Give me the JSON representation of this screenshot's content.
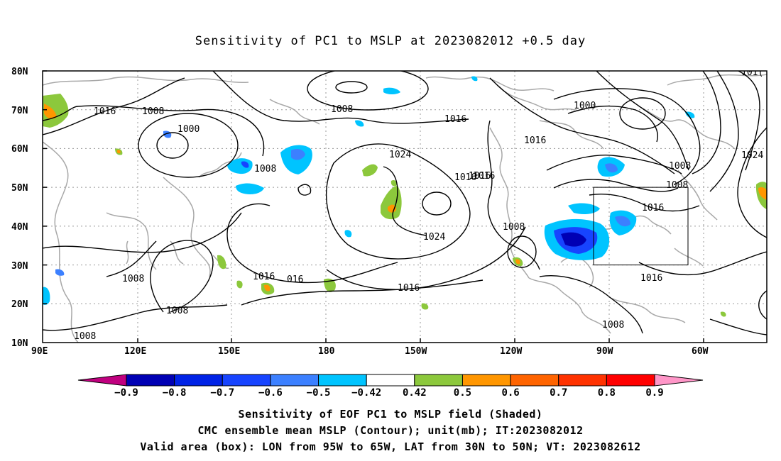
{
  "title": "Sensitivity of PC1 to MSLP at 2023082012 +0.5 day",
  "lat_labels": [
    "80N",
    "70N",
    "60N",
    "50N",
    "40N",
    "30N",
    "20N",
    "10N"
  ],
  "lon_labels": [
    "90E",
    "120E",
    "150E",
    "180",
    "150W",
    "120W",
    "90W",
    "60W"
  ],
  "contour_labels": [
    "1016",
    "1008",
    "1000",
    "1008",
    "1016",
    "1024",
    "1016",
    "1024",
    "1008",
    "1016",
    "1016",
    "1000",
    "1008",
    "1016",
    "1024",
    "1016",
    "1008",
    "1016",
    "016",
    "1016",
    "1008",
    "1008",
    "1008",
    "1008",
    "1016",
    "1008",
    "1016",
    "101("
  ],
  "colorbar": {
    "labels": [
      "-0.9",
      "-0.8",
      "-0.7",
      "-0.6",
      "-0.5",
      "-0.42",
      "0.42",
      "0.5",
      "0.6",
      "0.7",
      "0.8",
      "0.9"
    ],
    "colors": [
      "#c0007f",
      "#0000b4",
      "#0022e6",
      "#1744ff",
      "#3c80ff",
      "#00c4ff",
      "#ffffff",
      "#8cc83c",
      "#ff9600",
      "#ff6400",
      "#ff3200",
      "#ff0000",
      "#ff96c8"
    ]
  },
  "captions": [
    "Sensitivity of EOF PC1 to MSLP field (Shaded)",
    "CMC ensemble mean MSLP (Contour); unit(mb); IT:2023082012",
    "Valid area (box): LON from 95W to 65W, LAT from 30N to 50N; VT: 2023082612"
  ]
}
